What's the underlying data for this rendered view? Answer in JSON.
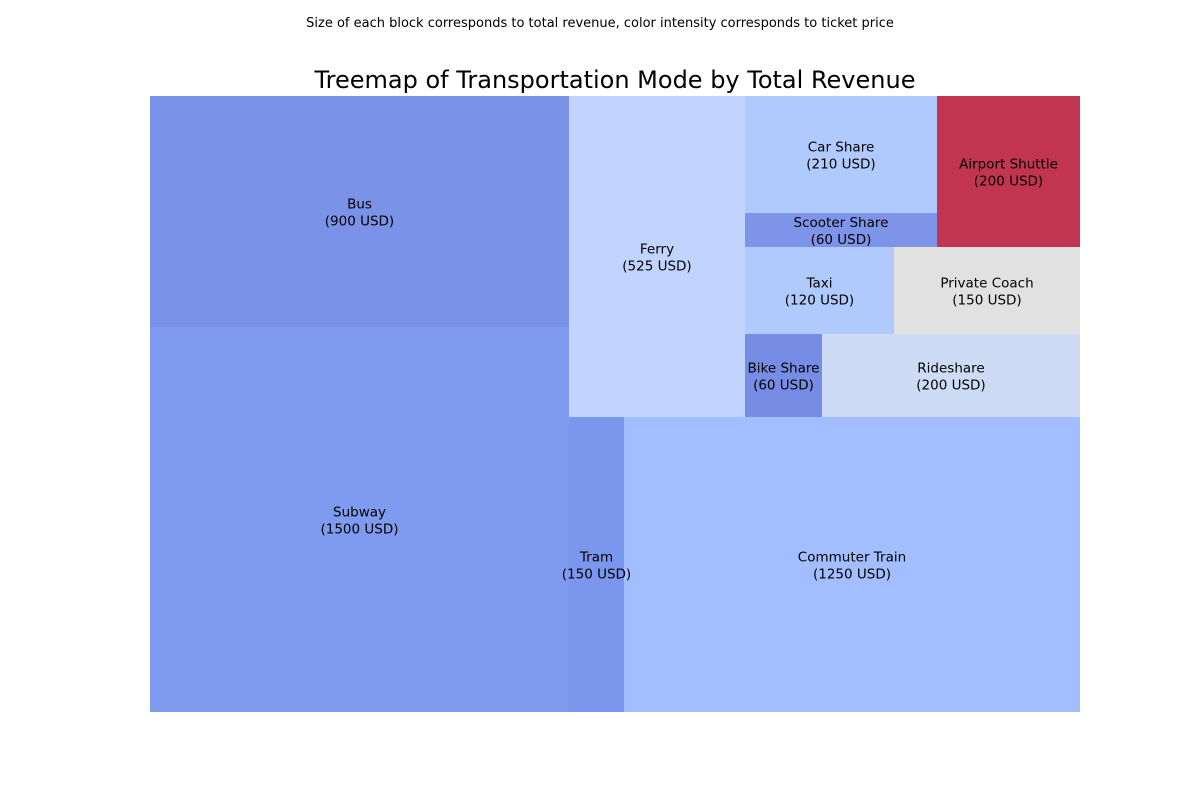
{
  "chart_data": {
    "type": "treemap",
    "caption": "Size of each block corresponds to total revenue, color intensity corresponds to ticket price",
    "title": "Treemap of Transportation Mode by Total Revenue",
    "unit": "USD",
    "items": [
      {
        "label": "Subway",
        "value": 1500,
        "value_text": "(1500 USD)",
        "color": "#7f9bef"
      },
      {
        "label": "Commuter Train",
        "value": 1250,
        "value_text": "(1250 USD)",
        "color": "#a3befe"
      },
      {
        "label": "Bus",
        "value": 900,
        "value_text": "(900 USD)",
        "color": "#7a93e9"
      },
      {
        "label": "Ferry",
        "value": 525,
        "value_text": "(525 USD)",
        "color": "#c0d4fd"
      },
      {
        "label": "Car Share",
        "value": 210,
        "value_text": "(210 USD)",
        "color": "#b0cafd"
      },
      {
        "label": "Airport Shuttle",
        "value": 200,
        "value_text": "(200 USD)",
        "color": "#c23550"
      },
      {
        "label": "Rideshare",
        "value": 200,
        "value_text": "(200 USD)",
        "color": "#cddcf4"
      },
      {
        "label": "Tram",
        "value": 150,
        "value_text": "(150 USD)",
        "color": "#7b97ed"
      },
      {
        "label": "Private Coach",
        "value": 150,
        "value_text": "(150 USD)",
        "color": "#e1e1e1"
      },
      {
        "label": "Taxi",
        "value": 120,
        "value_text": "(120 USD)",
        "color": "#b0cafd"
      },
      {
        "label": "Scooter Share",
        "value": 60,
        "value_text": "(60 USD)",
        "color": "#7e94e9"
      },
      {
        "label": "Bike Share",
        "value": 60,
        "value_text": "(60 USD)",
        "color": "#778ce4"
      }
    ]
  }
}
